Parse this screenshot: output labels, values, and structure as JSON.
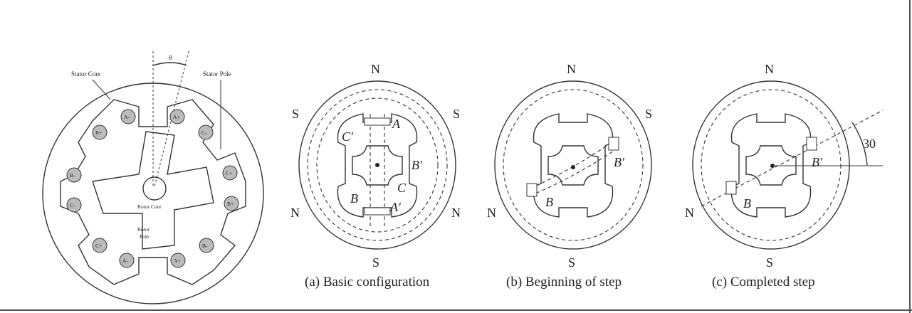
{
  "left_diagram": {
    "stator_core_label": "Stator Core",
    "stator_pole_label": "Stator Pole",
    "theta_label": "θ",
    "rotor_core_label": "Rotor Core",
    "rotor_pole_label_1": "Rotor",
    "rotor_pole_label_2": "Pole",
    "windings": [
      "A-",
      "A+",
      "C-",
      "C+",
      "B+",
      "B-",
      "A+",
      "A-",
      "C+",
      "C-",
      "B-",
      "B+"
    ]
  },
  "panel_a": {
    "north_top": "N",
    "south_left_top": "S",
    "south_right_top": "S",
    "north_left_bottom": "N",
    "north_right_bottom": "N",
    "south_bottom": "S",
    "coil_A": "A",
    "coil_A_prime": "A′",
    "coil_B": "B",
    "coil_B_prime": "B′",
    "coil_C": "C",
    "coil_C_prime": "C′",
    "caption": "(a) Basic configuration"
  },
  "panel_b": {
    "north_top": "N",
    "south_right": "S",
    "north_left": "N",
    "south_bottom": "S",
    "coil_B": "B",
    "coil_B_prime": "B′",
    "caption": "(b) Beginning of step"
  },
  "panel_c": {
    "north_top": "N",
    "north_left": "N",
    "south_bottom": "S",
    "coil_B": "B",
    "coil_B_prime": "B′",
    "angle_label": "30",
    "caption": "(c) Completed step"
  }
}
